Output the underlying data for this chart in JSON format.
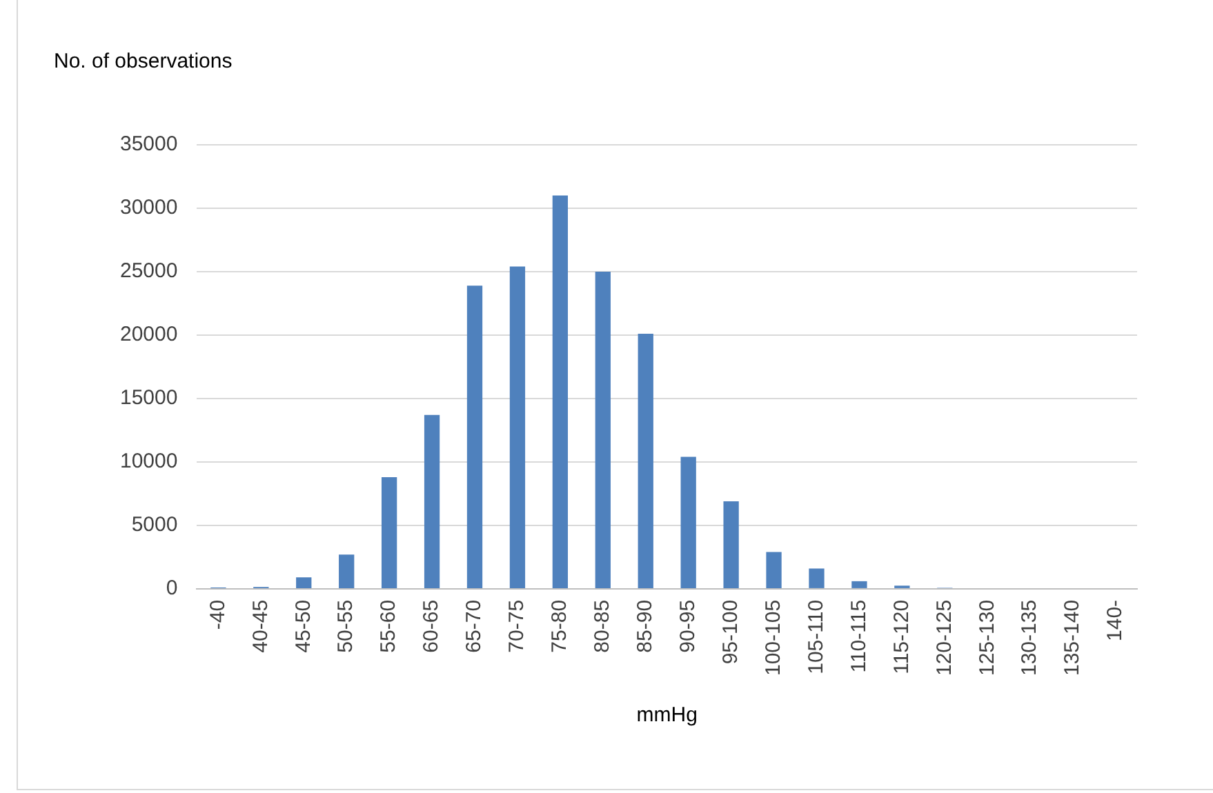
{
  "chart_data": {
    "type": "bar",
    "ylabel": "No. of observations",
    "xlabel": "mmHg",
    "categories": [
      "-40",
      "40-45",
      "45-50",
      "50-55",
      "55-60",
      "60-65",
      "65-70",
      "70-75",
      "75-80",
      "80-85",
      "85-90",
      "90-95",
      "95-100",
      "100-105",
      "105-110",
      "110-115",
      "115-120",
      "120-125",
      "125-130",
      "130-135",
      "135-140",
      "140-"
    ],
    "values": [
      100,
      150,
      900,
      2700,
      8800,
      13700,
      23900,
      25400,
      31000,
      25000,
      20100,
      10400,
      6900,
      2900,
      1600,
      600,
      250,
      80,
      0,
      0,
      0,
      0
    ],
    "color": "#4f81bd",
    "ylim": [
      0,
      35000
    ],
    "yticks": [
      0,
      5000,
      10000,
      15000,
      20000,
      25000,
      30000,
      35000
    ],
    "grid": "y",
    "legend": false
  }
}
